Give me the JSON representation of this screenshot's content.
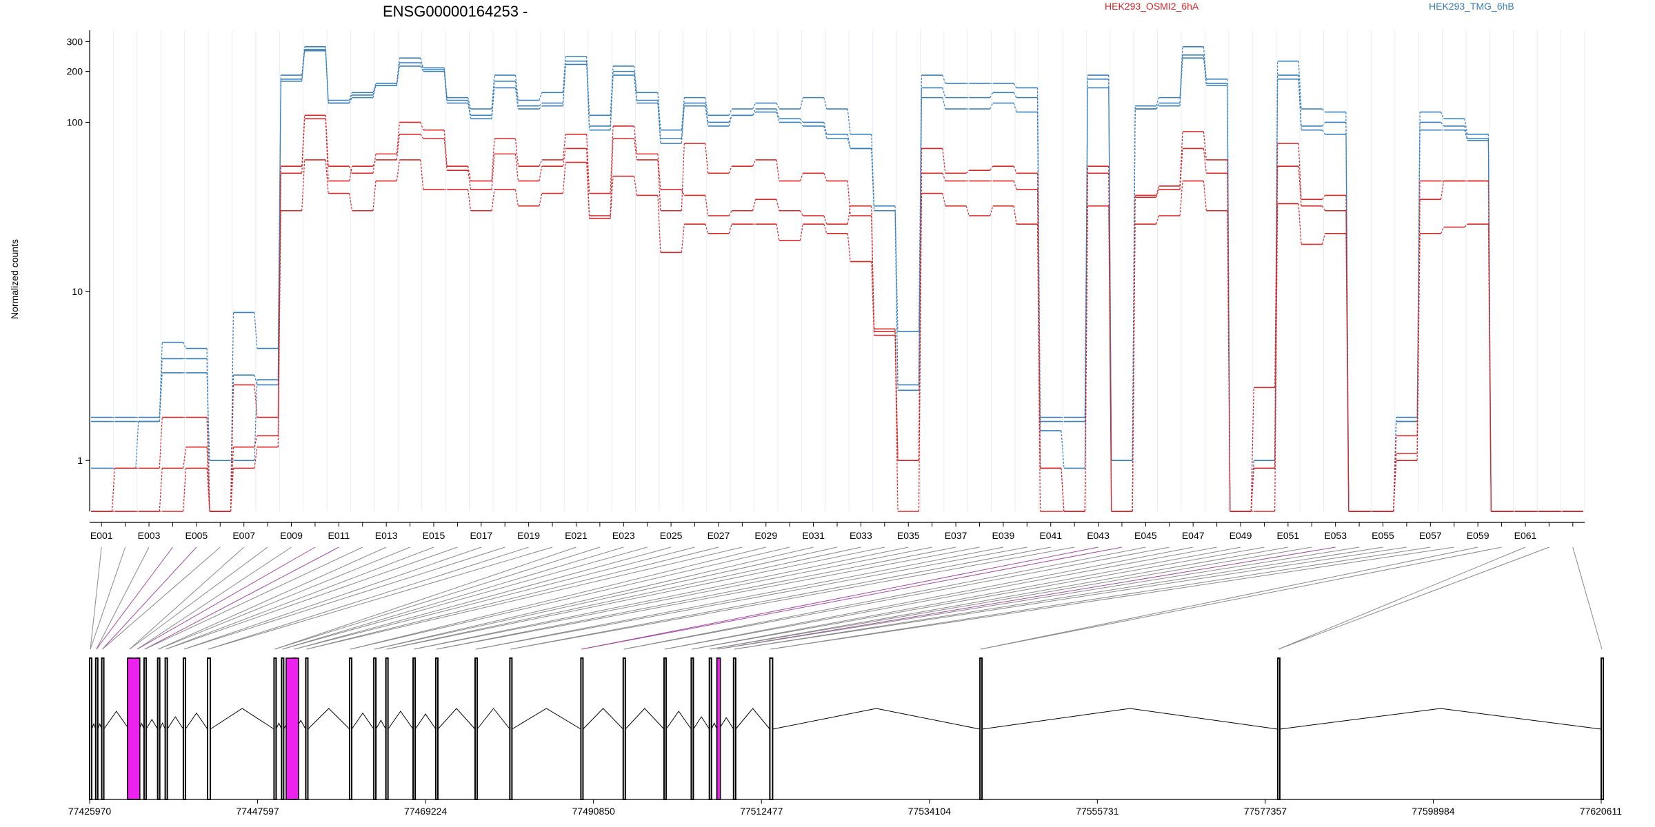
{
  "chart_data": {
    "type": "line",
    "title": "ENSG00000164253 -",
    "ylabel": "Normalized counts",
    "yscale": "log",
    "ylim": [
      0.5,
      350
    ],
    "yticks": [
      {
        "value": 300,
        "label": "300"
      },
      {
        "value": 200,
        "label": "200"
      },
      {
        "value": 100,
        "label": "100"
      },
      {
        "value": 10,
        "label": "10"
      },
      {
        "value": 1,
        "label": "1"
      }
    ],
    "exon_tick_labels": [
      "E001",
      "E003",
      "E005",
      "E007",
      "E009",
      "E011",
      "E013",
      "E015",
      "E017",
      "E019",
      "E021",
      "E023",
      "E025",
      "E027",
      "E029",
      "E031",
      "E033",
      "E035",
      "E037",
      "E039",
      "E041",
      "E043",
      "E045",
      "E047",
      "E049",
      "E051",
      "E053",
      "E055",
      "E057",
      "E059",
      "E061"
    ],
    "legend": [
      {
        "name": "HEK293_OSMI2_6hA",
        "color": "#d62728"
      },
      {
        "name": "HEK293_TMG_6hB",
        "color": "#3a7fba"
      }
    ],
    "series": [
      {
        "name": "",
        "group": "HEK293_TMG_6hB",
        "values": [
          1.8,
          1.8,
          1.8,
          5.0,
          4.6,
          0.5,
          7.5,
          4.6,
          190,
          280,
          135,
          150,
          170,
          240,
          210,
          140,
          120,
          190,
          135,
          150,
          245,
          110,
          215,
          150,
          90,
          140,
          110,
          120,
          130,
          120,
          140,
          120,
          85,
          32,
          5.8,
          190,
          170,
          170,
          170,
          160,
          1.8,
          1.8,
          190,
          1.0,
          125,
          140,
          280,
          180,
          0.5,
          1.0,
          230,
          120,
          115,
          0.5,
          0.5,
          1.8,
          115,
          105,
          85,
          0.5,
          0.5,
          0.5,
          0.5
        ]
      },
      {
        "name": "",
        "group": "HEK293_TMG_6hB",
        "values": [
          1.7,
          1.7,
          1.7,
          4.0,
          4.0,
          0.5,
          3.2,
          2.8,
          180,
          270,
          130,
          145,
          165,
          225,
          205,
          135,
          110,
          175,
          125,
          130,
          230,
          95,
          200,
          135,
          80,
          130,
          100,
          110,
          120,
          105,
          100,
          85,
          70,
          30,
          2.8,
          160,
          140,
          140,
          150,
          140,
          1.7,
          1.7,
          180,
          1.0,
          120,
          130,
          250,
          170,
          0.5,
          1.0,
          190,
          95,
          100,
          0.5,
          0.5,
          1.7,
          100,
          95,
          80,
          0.5,
          0.5,
          0.5,
          0.5
        ]
      },
      {
        "name": "",
        "group": "HEK293_TMG_6hB",
        "values": [
          0.9,
          0.9,
          1.7,
          3.3,
          3.3,
          1.0,
          1.0,
          3.0,
          175,
          265,
          130,
          140,
          165,
          215,
          200,
          130,
          105,
          160,
          120,
          125,
          220,
          90,
          190,
          130,
          75,
          125,
          95,
          110,
          115,
          100,
          95,
          80,
          70,
          30,
          2.6,
          140,
          120,
          120,
          130,
          115,
          1.5,
          0.9,
          160,
          1.0,
          120,
          125,
          240,
          165,
          0.5,
          0.9,
          180,
          90,
          85,
          0.5,
          0.5,
          1.7,
          90,
          90,
          78,
          0.5,
          0.5,
          0.5,
          0.5
        ]
      },
      {
        "name": "",
        "group": "HEK293_OSMI2_6hA",
        "values": [
          0.5,
          0.9,
          0.9,
          1.8,
          1.8,
          0.5,
          2.8,
          1.8,
          55,
          110,
          55,
          50,
          65,
          100,
          90,
          55,
          45,
          80,
          55,
          60,
          85,
          38,
          95,
          65,
          40,
          37,
          28,
          30,
          35,
          30,
          28,
          25,
          32,
          6.0,
          1.0,
          70,
          50,
          52,
          55,
          50,
          0.9,
          0.5,
          55,
          0.5,
          37,
          42,
          88,
          60,
          0.5,
          2.7,
          75,
          35,
          37,
          0.5,
          0.5,
          1.4,
          45,
          45,
          45,
          0.5,
          0.5,
          0.5,
          0.5
        ]
      },
      {
        "name": "",
        "group": "HEK293_OSMI2_6hA",
        "values": [
          0.5,
          0.5,
          0.5,
          0.9,
          1.2,
          0.5,
          1.2,
          1.4,
          50,
          105,
          45,
          55,
          60,
          85,
          80,
          52,
          40,
          65,
          45,
          55,
          70,
          28,
          80,
          60,
          30,
          75,
          50,
          55,
          60,
          45,
          50,
          45,
          28,
          5.8,
          1.0,
          50,
          45,
          45,
          45,
          40,
          0.9,
          0.5,
          50,
          0.5,
          36,
          40,
          70,
          50,
          0.5,
          0.9,
          55,
          32,
          30,
          0.5,
          0.5,
          1.1,
          35,
          45,
          45,
          0.5,
          0.5,
          0.5,
          0.5
        ]
      },
      {
        "name": "",
        "group": "HEK293_OSMI2_6hA",
        "values": [
          0.5,
          0.5,
          0.5,
          0.5,
          0.9,
          0.5,
          0.9,
          1.2,
          30,
          60,
          38,
          30,
          45,
          60,
          40,
          40,
          30,
          40,
          32,
          38,
          58,
          27,
          48,
          37,
          17,
          25,
          22,
          25,
          25,
          20,
          25,
          22,
          15,
          5.5,
          0.5,
          38,
          32,
          28,
          32,
          25,
          0.5,
          0.5,
          32,
          0.5,
          25,
          28,
          45,
          30,
          0.5,
          0.5,
          33,
          19,
          22,
          0.5,
          0.5,
          1.0,
          22,
          24,
          25,
          0.5,
          0.5,
          0.5,
          0.5
        ]
      }
    ],
    "genome_tick_labels": [
      "77425970",
      "77447597",
      "77469224",
      "77490850",
      "77512477",
      "77534104",
      "77555731",
      "77577357",
      "77598984",
      "77620611"
    ]
  }
}
